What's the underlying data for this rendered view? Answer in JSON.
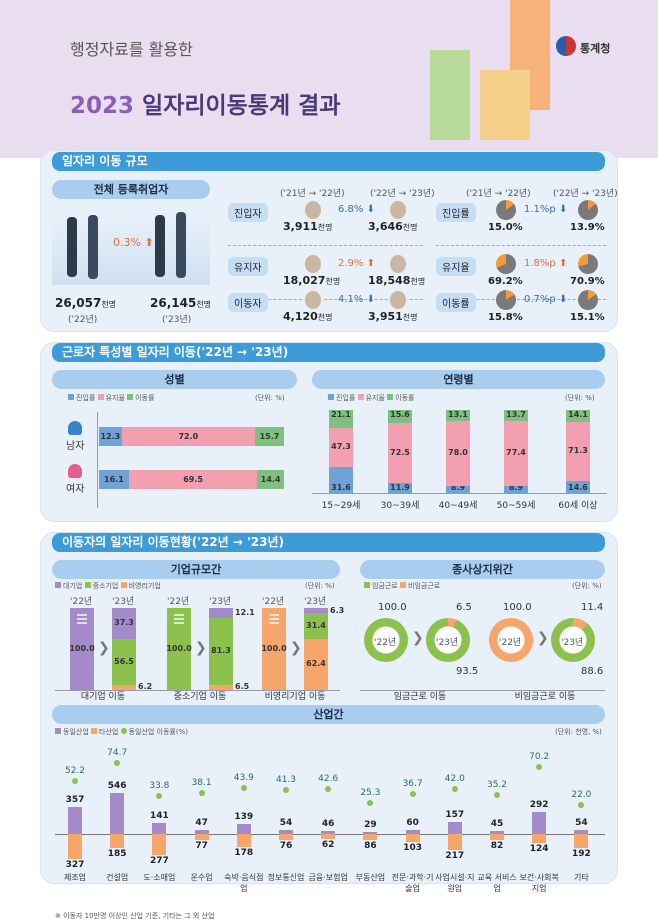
{
  "header": {
    "subtitle": "행정자료를 활용한",
    "title_year": "2023",
    "title_text": "일자리이동통계 결과",
    "agency": "통계청"
  },
  "colors": {
    "entry": "#6fa3d8",
    "stay": "#f2a0b0",
    "move": "#7fbf7f",
    "large": "#a58ac9",
    "sme": "#8cc14d",
    "nonprofit": "#f6a66a",
    "section_bar": "#3d9bd8"
  },
  "scale": {
    "section_title": "일자리 이동 규모",
    "total_label": "전체 등록취업자",
    "total_change": "0.3%",
    "total_22": "26,057",
    "total_23": "26,145",
    "unit": "천명",
    "y22": "('22년)",
    "y23": "('23년)",
    "period1": "('21년 → '22년)",
    "period2": "('22년 → '23년)",
    "rows": [
      {
        "label": "진입자",
        "v1": "3,911",
        "v2": "3,646",
        "change": "6.8%",
        "dir": "down",
        "rate_label": "진입률",
        "r1": "15.0%",
        "r2": "13.9%",
        "r1v": 15.0,
        "r2v": 13.9,
        "rchange": "1.1%p",
        "rdir": "down"
      },
      {
        "label": "유지자",
        "v1": "18,027",
        "v2": "18,548",
        "change": "2.9%",
        "dir": "up",
        "rate_label": "유지율",
        "r1": "69.2%",
        "r2": "70.9%",
        "r1v": 69.2,
        "r2v": 70.9,
        "rchange": "1.8%p",
        "rdir": "up"
      },
      {
        "label": "이동자",
        "v1": "4,120",
        "v2": "3,951",
        "change": "4.1%",
        "dir": "down",
        "rate_label": "이동률",
        "r1": "15.8%",
        "r2": "15.1%",
        "r1v": 15.8,
        "r2v": 15.1,
        "rchange": "0.7%p",
        "rdir": "down"
      }
    ]
  },
  "traits": {
    "section_title": "근로자 특성별 일자리 이동('22년 → '23년)",
    "gender_title": "성별",
    "age_title": "연령별",
    "unit": "(단위: %)",
    "legend": [
      "진입률",
      "유지율",
      "이동률"
    ],
    "gender": [
      {
        "label": "남자",
        "values": [
          12.3,
          72.0,
          15.7
        ]
      },
      {
        "label": "여자",
        "values": [
          16.1,
          69.5,
          14.4
        ]
      }
    ],
    "age": [
      {
        "label": "15~29세",
        "values": [
          31.6,
          47.3,
          21.1
        ]
      },
      {
        "label": "30~39세",
        "values": [
          11.9,
          72.5,
          15.6
        ]
      },
      {
        "label": "40~49세",
        "values": [
          8.9,
          78.0,
          13.1
        ]
      },
      {
        "label": "50~59세",
        "values": [
          8.9,
          77.4,
          13.7
        ]
      },
      {
        "label": "60세 이상",
        "values": [
          14.6,
          71.3,
          14.1
        ]
      }
    ]
  },
  "movers": {
    "section_title": "이동자의 일자리 이동현황('22년 → '23년)",
    "size_title": "기업규모간",
    "status_title": "종사상지위간",
    "unit": "(단위: %)",
    "size_legend": [
      "대기업",
      "중소기업",
      "비영리기업"
    ],
    "y22": "'22년",
    "y23": "'23년",
    "size": [
      {
        "label": "대기업 이동",
        "from": 0,
        "from_value": "100.0",
        "to": [
          37.3,
          56.5,
          6.2
        ]
      },
      {
        "label": "중소기업 이동",
        "from": 1,
        "from_value": "100.0",
        "to": [
          12.1,
          81.3,
          6.5
        ]
      },
      {
        "label": "비영리기업 이동",
        "from": 2,
        "from_value": "100.0",
        "to": [
          6.3,
          31.4,
          62.4
        ]
      }
    ],
    "status_legend": [
      "임금근로",
      "비임금근로"
    ],
    "status": [
      {
        "label": "임금근로 이동",
        "from": "wage",
        "from_value": "100.0",
        "to_wage": 93.5,
        "to_nonwage": 6.5,
        "c22": "'22년",
        "c23": "'23년"
      },
      {
        "label": "비임금근로 이동",
        "from": "nonwage",
        "from_value": "100.0",
        "to_wage": 88.6,
        "to_nonwage": 11.4,
        "c22": "'22년",
        "c23": "'23년"
      }
    ]
  },
  "chart_data": {
    "type": "bar",
    "title": "산업간",
    "unit": "(단위: 천명, %)",
    "legend": [
      "동일산업",
      "타산업",
      "동일산업 이동률(%)"
    ],
    "categories": [
      "제조업",
      "건설업",
      "도·소매업",
      "운수업",
      "숙박·음식점업",
      "정보통신업",
      "금융·보험업",
      "부동산업",
      "전문·과학·기술업",
      "사업시설·지원업",
      "교육 서비스업",
      "보건·사회복지업",
      "기타"
    ],
    "series": [
      {
        "name": "동일산업",
        "values": [
          357,
          546,
          141,
          47,
          139,
          54,
          46,
          29,
          60,
          157,
          45,
          292,
          54
        ]
      },
      {
        "name": "타산업",
        "values": [
          327,
          185,
          277,
          77,
          178,
          76,
          62,
          86,
          103,
          217,
          82,
          124,
          192
        ]
      },
      {
        "name": "동일산업 이동률(%)",
        "values": [
          52.2,
          74.7,
          33.8,
          38.1,
          43.9,
          41.3,
          42.6,
          25.3,
          36.7,
          42.0,
          35.2,
          70.2,
          22.0
        ]
      }
    ],
    "footnote": "※ 이동자 10만명 이상인 산업 기준, 기타는 그 외 산업"
  }
}
